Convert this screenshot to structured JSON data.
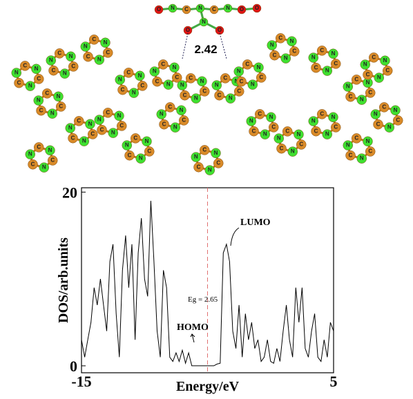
{
  "figure": {
    "atom_labels": {
      "carbon": "C",
      "nitrogen": "N",
      "oxygen": "O"
    },
    "distance_label": "2.42"
  },
  "chart_data": {
    "type": "line",
    "x_label": "Energy/eV",
    "y_label": "DOS/arb.units",
    "x": [
      -15,
      -14.75,
      -14.5,
      -14.25,
      -14,
      -13.75,
      -13.5,
      -13.25,
      -13,
      -12.75,
      -12.5,
      -12.25,
      -12,
      -11.75,
      -11.5,
      -11.25,
      -11,
      -10.75,
      -10.5,
      -10.25,
      -10,
      -9.75,
      -9.5,
      -9.25,
      -9,
      -8.75,
      -8.5,
      -8.25,
      -8,
      -7.75,
      -7.5,
      -7.25,
      -7,
      -6.75,
      -6.5,
      -6.25,
      -6,
      -5.5,
      -5,
      -4.5,
      -4.25,
      -4,
      -3.75,
      -3.5,
      -3.25,
      -3,
      -2.75,
      -2.5,
      -2.25,
      -2,
      -1.75,
      -1.5,
      -1.25,
      -1,
      -0.75,
      -0.5,
      -0.25,
      0,
      0.25,
      0.5,
      0.75,
      1,
      1.25,
      1.5,
      1.75,
      2,
      2.25,
      2.5,
      2.75,
      3,
      3.25,
      3.5,
      3.75,
      4,
      4.25,
      4.5,
      4.75,
      5
    ],
    "series": [
      {
        "color": "#000000",
        "values": [
          3,
          1,
          3,
          5,
          9,
          7,
          10,
          7,
          4,
          12,
          14,
          6,
          1,
          11,
          15,
          9,
          14,
          3,
          13,
          17,
          10,
          8,
          19,
          12,
          4,
          1,
          11,
          9,
          1,
          0.5,
          1.5,
          0.5,
          1.8,
          0.3,
          1.5,
          0,
          0,
          0,
          0,
          0,
          0.2,
          0.3,
          13,
          14,
          12,
          4,
          2,
          7,
          1,
          6,
          3,
          5,
          2,
          3,
          0.5,
          1,
          3,
          0.5,
          0.3,
          2,
          0.5,
          4,
          7,
          3,
          1,
          9,
          5,
          9,
          2,
          1,
          4,
          6,
          1,
          0.5,
          3,
          1,
          5,
          4
        ]
      }
    ],
    "fermi_level": -5,
    "annotations": {
      "lumo": "LUMO",
      "homo": "HOMO",
      "gap": "Eg = 2.65"
    },
    "xlim": [
      -15,
      5
    ],
    "xticks": [
      -15,
      5
    ],
    "ylim": [
      -0.8,
      20.5
    ],
    "yticks": [
      0,
      20
    ]
  }
}
